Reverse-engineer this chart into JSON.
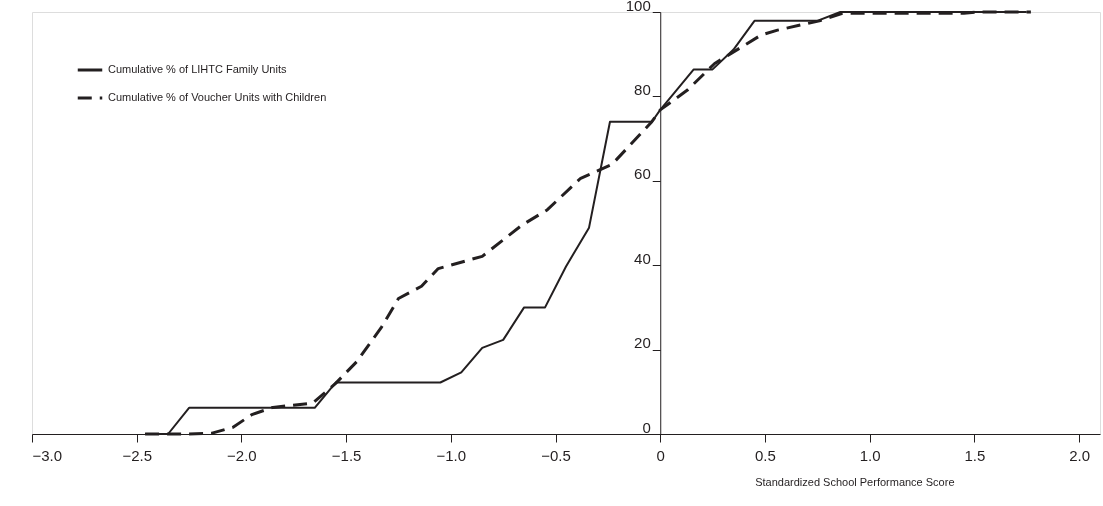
{
  "chart_data": {
    "type": "line",
    "xlabel": "Standardized School Performance Score",
    "xlim": [
      -3.0,
      2.1
    ],
    "xticks": [
      {
        "value": -3.0,
        "label": "−3.0"
      },
      {
        "value": -2.5,
        "label": "−2.5"
      },
      {
        "value": -2.0,
        "label": "−2.0"
      },
      {
        "value": -1.5,
        "label": "−1.5"
      },
      {
        "value": -1.0,
        "label": "−1.0"
      },
      {
        "value": -0.5,
        "label": "−0.5"
      },
      {
        "value": 0,
        "label": "0"
      },
      {
        "value": 0.5,
        "label": "0.5"
      },
      {
        "value": 1.0,
        "label": "1.0"
      },
      {
        "value": 1.5,
        "label": "1.5"
      },
      {
        "value": 2.0,
        "label": "2.0"
      }
    ],
    "ylim": [
      0,
      100
    ],
    "yticks": [
      0,
      20,
      40,
      60,
      80,
      100
    ],
    "grid": false,
    "legend": "top left",
    "marker": "none",
    "series": [
      {
        "name": "Cumulative % of LIHTC Family Units",
        "color": "#231f20",
        "line_style": "solid",
        "x": [
          -2.46,
          -2.35,
          -2.25,
          -1.65,
          -1.55,
          -1.05,
          -0.95,
          -0.85,
          -0.75,
          -0.65,
          -0.55,
          -0.45,
          -0.34,
          -0.24,
          -0.04,
          0.0,
          0.16,
          0.25,
          0.35,
          0.45,
          0.75,
          0.86,
          1.75
        ],
        "values": [
          0,
          0,
          6.2,
          6.2,
          12.2,
          12.2,
          14.6,
          20.4,
          22.3,
          30.0,
          30.0,
          39.7,
          48.9,
          74.0,
          74.0,
          76.8,
          86.4,
          86.4,
          91.1,
          97.9,
          97.9,
          100,
          100
        ]
      },
      {
        "name": "Cumulative % of Voucher Units with Children",
        "color": "#231f20",
        "line_style": "dashed",
        "x": [
          -2.46,
          -2.25,
          -2.14,
          -2.04,
          -1.95,
          -1.85,
          -1.66,
          -1.55,
          -1.45,
          -1.33,
          -1.25,
          -1.14,
          -1.06,
          -0.85,
          -0.66,
          -0.54,
          -0.38,
          -0.23,
          -0.04,
          0.0,
          0.13,
          0.26,
          0.48,
          0.56,
          0.76,
          0.87,
          1.45,
          1.51,
          1.77
        ],
        "values": [
          0,
          0,
          0.2,
          1.6,
          4.6,
          6.3,
          7.3,
          12,
          17.1,
          25.4,
          32.1,
          35,
          39.2,
          42.1,
          49.5,
          53.1,
          60.6,
          63.9,
          74,
          76.8,
          81.5,
          87.8,
          94.5,
          95.7,
          97.9,
          99.7,
          99.7,
          100,
          100
        ]
      }
    ]
  }
}
